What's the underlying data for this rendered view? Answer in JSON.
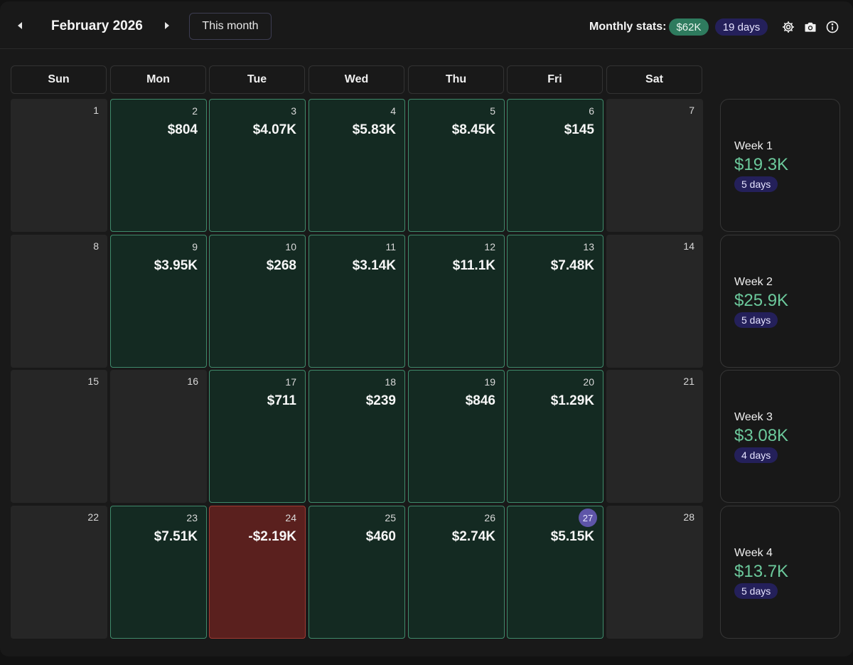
{
  "header": {
    "month_title": "February 2026",
    "this_month_label": "This month",
    "stats_label": "Monthly stats:",
    "stats_total": "$62K",
    "stats_days": "19 days",
    "icons": [
      "chevron-left-icon",
      "chevron-right-icon",
      "gear-icon",
      "camera-icon",
      "info-icon"
    ]
  },
  "weekdays": [
    "Sun",
    "Mon",
    "Tue",
    "Wed",
    "Thu",
    "Fri",
    "Sat"
  ],
  "today": 27,
  "days": [
    {
      "num": "1",
      "value": "",
      "status": "empty"
    },
    {
      "num": "2",
      "value": "$804",
      "status": "profit"
    },
    {
      "num": "3",
      "value": "$4.07K",
      "status": "profit"
    },
    {
      "num": "4",
      "value": "$5.83K",
      "status": "profit"
    },
    {
      "num": "5",
      "value": "$8.45K",
      "status": "profit"
    },
    {
      "num": "6",
      "value": "$145",
      "status": "profit"
    },
    {
      "num": "7",
      "value": "",
      "status": "empty"
    },
    {
      "num": "8",
      "value": "",
      "status": "empty"
    },
    {
      "num": "9",
      "value": "$3.95K",
      "status": "profit"
    },
    {
      "num": "10",
      "value": "$268",
      "status": "profit"
    },
    {
      "num": "11",
      "value": "$3.14K",
      "status": "profit"
    },
    {
      "num": "12",
      "value": "$11.1K",
      "status": "profit"
    },
    {
      "num": "13",
      "value": "$7.48K",
      "status": "profit"
    },
    {
      "num": "14",
      "value": "",
      "status": "empty"
    },
    {
      "num": "15",
      "value": "",
      "status": "empty"
    },
    {
      "num": "16",
      "value": "",
      "status": "empty"
    },
    {
      "num": "17",
      "value": "$711",
      "status": "profit"
    },
    {
      "num": "18",
      "value": "$239",
      "status": "profit"
    },
    {
      "num": "19",
      "value": "$846",
      "status": "profit"
    },
    {
      "num": "20",
      "value": "$1.29K",
      "status": "profit"
    },
    {
      "num": "21",
      "value": "",
      "status": "empty"
    },
    {
      "num": "22",
      "value": "",
      "status": "empty"
    },
    {
      "num": "23",
      "value": "$7.51K",
      "status": "profit"
    },
    {
      "num": "24",
      "value": "-$2.19K",
      "status": "loss"
    },
    {
      "num": "25",
      "value": "$460",
      "status": "profit"
    },
    {
      "num": "26",
      "value": "$2.74K",
      "status": "profit"
    },
    {
      "num": "27",
      "value": "$5.15K",
      "status": "profit"
    },
    {
      "num": "28",
      "value": "",
      "status": "empty"
    }
  ],
  "weeks": [
    {
      "label": "Week 1",
      "total": "$19.3K",
      "days": "5 days"
    },
    {
      "label": "Week 2",
      "total": "$25.9K",
      "days": "5 days"
    },
    {
      "label": "Week 3",
      "total": "$3.08K",
      "days": "4 days"
    },
    {
      "label": "Week 4",
      "total": "$13.7K",
      "days": "5 days"
    }
  ],
  "colors": {
    "profit_bg": "#142a22",
    "profit_border": "#3f8a6b",
    "loss_bg": "#5a201e",
    "week_total": "#6cc99c",
    "days_pill": "#24205a",
    "money_pill": "#2e7b5e"
  }
}
